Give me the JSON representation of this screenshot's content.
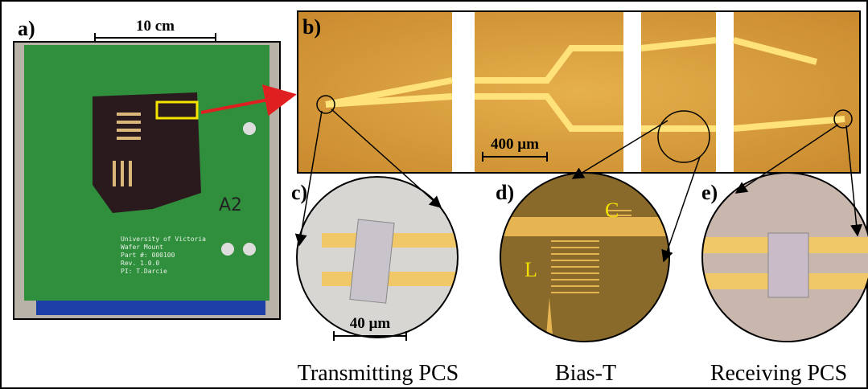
{
  "panels": [
    {
      "label": "a)",
      "scale_bar": "10 cm",
      "board_text": [
        "University of Victoria",
        "Wafer Mount",
        "Part #: 000100",
        "Rev. 1.0.0",
        "PI: T.Darcie"
      ],
      "handwriting": "A2"
    },
    {
      "label": "b)",
      "scale_bar": "400 µm"
    },
    {
      "label": "c)",
      "scale_bar": "40 µm",
      "caption": "Transmitting PCS"
    },
    {
      "label": "d)",
      "markers": [
        "C",
        "L"
      ],
      "caption": "Bias-T"
    },
    {
      "label": "e)",
      "caption": "Receiving PCS"
    }
  ]
}
